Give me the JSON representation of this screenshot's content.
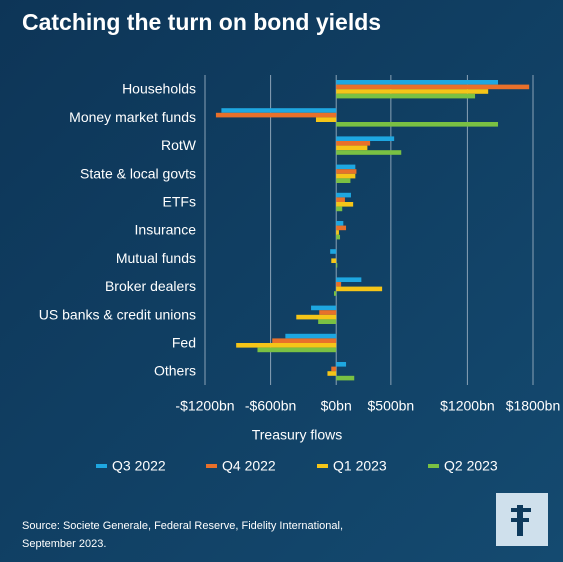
{
  "chart_data": {
    "type": "hbar",
    "title": "Catching the turn on bond yields",
    "x_label": "Treasury flows",
    "categories": [
      "Households",
      "Money market funds",
      "RotW",
      "State & local govts",
      "ETFs",
      "Insurance",
      "Mutual funds",
      "Broker dealers",
      "US banks & credit unions",
      "Fed",
      "Others"
    ],
    "series": [
      {
        "name": "Q3 2022",
        "color": "#1ea7e1",
        "values": [
          1480,
          -1050,
          530,
          175,
          135,
          65,
          -55,
          230,
          -230,
          -465,
          90
        ]
      },
      {
        "name": "Q4 2022",
        "color": "#e8702a",
        "values": [
          1765,
          -1100,
          310,
          185,
          80,
          90,
          0,
          45,
          -155,
          -585,
          -45
        ]
      },
      {
        "name": "Q1 2023",
        "color": "#f5c518",
        "values": [
          1390,
          -185,
          285,
          175,
          155,
          25,
          -45,
          420,
          -365,
          -915,
          -80
        ]
      },
      {
        "name": "Q2 2023",
        "color": "#7ac143",
        "values": [
          1270,
          1480,
          595,
          130,
          55,
          35,
          10,
          -20,
          -165,
          -720,
          165
        ]
      }
    ],
    "xlim": [
      -1200,
      1800
    ],
    "xticks": [
      {
        "value": -1200,
        "label": "-$1200bn"
      },
      {
        "value": -600,
        "label": "-$600bn"
      },
      {
        "value": 0,
        "label": "$0bn"
      },
      {
        "value": 500,
        "label": "$500bn"
      },
      {
        "value": 1200,
        "label": "$1200bn"
      },
      {
        "value": 1800,
        "label": "$1800bn"
      }
    ],
    "grid": true,
    "legend": "bottom",
    "source": [
      "Source: Societe Generale, Federal Reserve, Fidelity International,",
      "September 2023."
    ]
  }
}
